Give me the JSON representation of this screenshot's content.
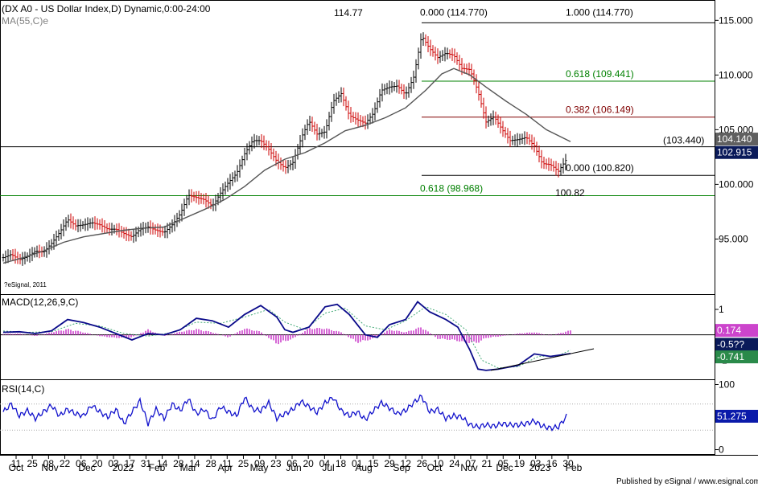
{
  "chart_data": {
    "type": "line",
    "title": "(DX A0 - US Dollar Index,D) Dynamic,0:00-24:00",
    "ma_label": "MA(55,C)e",
    "copyright": "?eSignal, 2011",
    "footer": "Published by eSignal / www.esignal.com",
    "price_panel": {
      "y_ticks": [
        115.0,
        110.0,
        105.0,
        100.0,
        95.0
      ],
      "y_tick_labels": [
        "115.000",
        "110.000",
        "105.000",
        "100.000",
        "95.000"
      ],
      "ylim": [
        89.96,
        116.86
      ],
      "last_price": "102.915",
      "ma_value": "104.140",
      "high_label": "114.77",
      "low_label": "100.82",
      "levels": [
        {
          "value": 114.77,
          "label_left": "0.000 (114.770)",
          "label_right": "1.000 (114.770)",
          "color": "#000000"
        },
        {
          "value": 109.441,
          "label": "0.618 (109.441)",
          "color": "#008000"
        },
        {
          "value": 106.149,
          "label": "0.382 (106.149)",
          "color": "#800000"
        },
        {
          "value": 103.44,
          "label": "(103.440)",
          "color": "#000000"
        },
        {
          "value": 100.82,
          "label": "0.000 (100.820)",
          "color": "#000000"
        },
        {
          "value": 98.968,
          "label": "0.618 (98.968)",
          "color": "#008000"
        }
      ],
      "close": [
        [
          0,
          93.3
        ],
        [
          10,
          93.6
        ],
        [
          20,
          93.1
        ],
        [
          30,
          93.4
        ],
        [
          40,
          93.9
        ],
        [
          50,
          93.8
        ],
        [
          60,
          94.6
        ],
        [
          70,
          95.6
        ],
        [
          80,
          96.8
        ],
        [
          90,
          96.2
        ],
        [
          100,
          96.3
        ],
        [
          110,
          96.5
        ],
        [
          120,
          96.3
        ],
        [
          130,
          95.9
        ],
        [
          140,
          95.9
        ],
        [
          150,
          95.5
        ],
        [
          160,
          95.2
        ],
        [
          170,
          95.9
        ],
        [
          180,
          96.1
        ],
        [
          190,
          95.8
        ],
        [
          200,
          95.6
        ],
        [
          210,
          96.3
        ],
        [
          220,
          97.3
        ],
        [
          230,
          99.0
        ],
        [
          240,
          98.8
        ],
        [
          250,
          98.6
        ],
        [
          260,
          98.0
        ],
        [
          270,
          99.2
        ],
        [
          280,
          100.2
        ],
        [
          290,
          101.0
        ],
        [
          300,
          102.8
        ],
        [
          310,
          104.0
        ],
        [
          320,
          104.0
        ],
        [
          330,
          103.2
        ],
        [
          340,
          102.1
        ],
        [
          350,
          101.5
        ],
        [
          360,
          102.0
        ],
        [
          370,
          104.2
        ],
        [
          380,
          105.8
        ],
        [
          390,
          104.6
        ],
        [
          400,
          104.8
        ],
        [
          410,
          107.6
        ],
        [
          420,
          108.3
        ],
        [
          430,
          106.3
        ],
        [
          440,
          105.9
        ],
        [
          450,
          105.6
        ],
        [
          460,
          106.5
        ],
        [
          470,
          108.6
        ],
        [
          480,
          108.9
        ],
        [
          490,
          109.0
        ],
        [
          500,
          108.2
        ],
        [
          510,
          109.8
        ],
        [
          520,
          113.6
        ],
        [
          530,
          112.4
        ],
        [
          540,
          111.6
        ],
        [
          550,
          112.0
        ],
        [
          560,
          111.8
        ],
        [
          570,
          110.6
        ],
        [
          580,
          110.5
        ],
        [
          590,
          108.5
        ],
        [
          600,
          105.7
        ],
        [
          610,
          106.2
        ],
        [
          620,
          105.0
        ],
        [
          630,
          104.0
        ],
        [
          640,
          104.1
        ],
        [
          650,
          104.3
        ],
        [
          660,
          103.5
        ],
        [
          670,
          101.9
        ],
        [
          680,
          101.8
        ],
        [
          690,
          101.2
        ],
        [
          700,
          102.3
        ]
      ],
      "ma": [
        [
          0,
          92.8
        ],
        [
          25,
          93.3
        ],
        [
          50,
          93.9
        ],
        [
          75,
          94.7
        ],
        [
          100,
          95.2
        ],
        [
          125,
          95.5
        ],
        [
          150,
          95.8
        ],
        [
          175,
          96.0
        ],
        [
          200,
          96.1
        ],
        [
          225,
          96.9
        ],
        [
          250,
          97.7
        ],
        [
          275,
          98.6
        ],
        [
          300,
          99.8
        ],
        [
          325,
          101.3
        ],
        [
          350,
          102.3
        ],
        [
          375,
          102.9
        ],
        [
          400,
          103.8
        ],
        [
          425,
          104.9
        ],
        [
          450,
          105.4
        ],
        [
          475,
          106.1
        ],
        [
          500,
          107.0
        ],
        [
          525,
          108.6
        ],
        [
          545,
          110.1
        ],
        [
          560,
          110.6
        ],
        [
          580,
          110.0
        ],
        [
          600,
          108.9
        ],
        [
          625,
          107.6
        ],
        [
          650,
          106.4
        ],
        [
          675,
          105.0
        ],
        [
          705,
          103.9
        ]
      ]
    },
    "macd_panel": {
      "label": "MACD(12,26,9,C)",
      "y_ticks": [
        1,
        0,
        -1
      ],
      "y_tick_labels": [
        "1",
        "",
        "-1"
      ],
      "ylim": [
        -1.75,
        1.6
      ],
      "hist_value": "0.174",
      "macd_value": "-0.741",
      "signal_value": "-0.5??",
      "macd": [
        [
          0,
          0.1
        ],
        [
          20,
          0.12
        ],
        [
          40,
          0.05
        ],
        [
          60,
          0.16
        ],
        [
          80,
          0.6
        ],
        [
          100,
          0.48
        ],
        [
          120,
          0.3
        ],
        [
          140,
          0.05
        ],
        [
          160,
          -0.2
        ],
        [
          180,
          0.05
        ],
        [
          200,
          0.0
        ],
        [
          220,
          0.2
        ],
        [
          240,
          0.65
        ],
        [
          260,
          0.55
        ],
        [
          280,
          0.3
        ],
        [
          300,
          0.8
        ],
        [
          320,
          1.15
        ],
        [
          340,
          0.7
        ],
        [
          350,
          0.2
        ],
        [
          360,
          0.1
        ],
        [
          380,
          0.3
        ],
        [
          400,
          1.1
        ],
        [
          415,
          1.2
        ],
        [
          430,
          0.8
        ],
        [
          450,
          0.0
        ],
        [
          465,
          -0.1
        ],
        [
          480,
          0.4
        ],
        [
          500,
          0.6
        ],
        [
          515,
          1.3
        ],
        [
          530,
          0.9
        ],
        [
          550,
          0.6
        ],
        [
          565,
          0.3
        ],
        [
          580,
          -0.6
        ],
        [
          590,
          -1.35
        ],
        [
          600,
          -1.4
        ],
        [
          615,
          -1.35
        ],
        [
          640,
          -1.2
        ],
        [
          660,
          -0.75
        ],
        [
          680,
          -0.85
        ],
        [
          705,
          -0.74
        ]
      ],
      "signal": [
        [
          0,
          0.15
        ],
        [
          30,
          0.1
        ],
        [
          60,
          0.12
        ],
        [
          90,
          0.45
        ],
        [
          120,
          0.35
        ],
        [
          150,
          0.05
        ],
        [
          180,
          -0.05
        ],
        [
          210,
          0.08
        ],
        [
          240,
          0.5
        ],
        [
          270,
          0.45
        ],
        [
          300,
          0.7
        ],
        [
          330,
          1.0
        ],
        [
          350,
          0.5
        ],
        [
          375,
          0.2
        ],
        [
          400,
          0.85
        ],
        [
          425,
          1.05
        ],
        [
          450,
          0.35
        ],
        [
          475,
          0.2
        ],
        [
          500,
          0.55
        ],
        [
          525,
          1.1
        ],
        [
          550,
          0.8
        ],
        [
          575,
          0.2
        ],
        [
          595,
          -1.0
        ],
        [
          615,
          -1.3
        ],
        [
          640,
          -1.25
        ],
        [
          665,
          -0.85
        ],
        [
          690,
          -0.82
        ],
        [
          705,
          -0.6
        ]
      ],
      "histogram": [
        [
          0,
          0.03
        ],
        [
          20,
          0.05
        ],
        [
          40,
          -0.05
        ],
        [
          60,
          0.1
        ],
        [
          80,
          0.22
        ],
        [
          100,
          0.1
        ],
        [
          120,
          -0.05
        ],
        [
          140,
          -0.12
        ],
        [
          160,
          -0.1
        ],
        [
          180,
          0.2
        ],
        [
          200,
          -0.05
        ],
        [
          220,
          0.12
        ],
        [
          240,
          0.22
        ],
        [
          260,
          0.1
        ],
        [
          280,
          -0.1
        ],
        [
          300,
          0.25
        ],
        [
          320,
          0.12
        ],
        [
          340,
          -0.35
        ],
        [
          360,
          -0.15
        ],
        [
          380,
          0.25
        ],
        [
          400,
          0.25
        ],
        [
          420,
          0.1
        ],
        [
          440,
          -0.3
        ],
        [
          460,
          -0.15
        ],
        [
          480,
          0.2
        ],
        [
          500,
          0.1
        ],
        [
          520,
          0.3
        ],
        [
          540,
          -0.15
        ],
        [
          560,
          -0.2
        ],
        [
          575,
          -0.3
        ],
        [
          590,
          -0.3
        ],
        [
          600,
          -0.12
        ],
        [
          620,
          -0.05
        ],
        [
          640,
          0.05
        ],
        [
          660,
          0.1
        ],
        [
          680,
          -0.03
        ],
        [
          705,
          0.17
        ]
      ]
    },
    "rsi_panel": {
      "label": "RSI(14,C)",
      "y_ticks": [
        100,
        50,
        0
      ],
      "y_tick_labels": [
        "100",
        "50",
        "0"
      ],
      "ylim": [
        -8,
        108
      ],
      "overbought": 70,
      "oversold": 30,
      "value": "51.275",
      "rsi": [
        [
          0,
          58
        ],
        [
          10,
          70
        ],
        [
          20,
          52
        ],
        [
          30,
          60
        ],
        [
          40,
          48
        ],
        [
          50,
          58
        ],
        [
          60,
          68
        ],
        [
          70,
          52
        ],
        [
          80,
          62
        ],
        [
          90,
          55
        ],
        [
          100,
          52
        ],
        [
          110,
          68
        ],
        [
          120,
          58
        ],
        [
          130,
          50
        ],
        [
          140,
          62
        ],
        [
          150,
          40
        ],
        [
          160,
          58
        ],
        [
          170,
          75
        ],
        [
          180,
          40
        ],
        [
          190,
          62
        ],
        [
          200,
          48
        ],
        [
          210,
          70
        ],
        [
          220,
          60
        ],
        [
          230,
          78
        ],
        [
          240,
          55
        ],
        [
          250,
          62
        ],
        [
          260,
          45
        ],
        [
          270,
          66
        ],
        [
          280,
          58
        ],
        [
          290,
          52
        ],
        [
          300,
          80
        ],
        [
          310,
          62
        ],
        [
          320,
          60
        ],
        [
          330,
          72
        ],
        [
          340,
          48
        ],
        [
          350,
          55
        ],
        [
          360,
          62
        ],
        [
          370,
          74
        ],
        [
          380,
          66
        ],
        [
          390,
          57
        ],
        [
          400,
          72
        ],
        [
          410,
          80
        ],
        [
          420,
          60
        ],
        [
          430,
          52
        ],
        [
          440,
          58
        ],
        [
          450,
          46
        ],
        [
          460,
          60
        ],
        [
          470,
          72
        ],
        [
          480,
          64
        ],
        [
          490,
          55
        ],
        [
          500,
          60
        ],
        [
          510,
          72
        ],
        [
          520,
          82
        ],
        [
          530,
          58
        ],
        [
          540,
          62
        ],
        [
          550,
          48
        ],
        [
          560,
          52
        ],
        [
          570,
          50
        ],
        [
          580,
          38
        ],
        [
          590,
          35
        ],
        [
          600,
          38
        ],
        [
          610,
          36
        ],
        [
          620,
          40
        ],
        [
          630,
          38
        ],
        [
          640,
          38
        ],
        [
          650,
          40
        ],
        [
          660,
          44
        ],
        [
          670,
          36
        ],
        [
          680,
          33
        ],
        [
          690,
          35
        ],
        [
          700,
          51
        ]
      ]
    },
    "trendlines": [
      {
        "panel": "price",
        "from": [
          524,
          114.77
        ],
        "to": [
          888,
          114.77
        ]
      },
      {
        "panel": "macd",
        "from": [
          610,
          -1.4
        ],
        "to": [
          738,
          -0.55
        ]
      }
    ],
    "x_tick_days": [
      "11",
      "25",
      "08",
      "22",
      "06",
      "20",
      "03",
      "17",
      "31",
      "14",
      "28",
      "14",
      "28",
      "11",
      "25",
      "09",
      "23",
      "06",
      "20",
      "04",
      "18",
      "01",
      "15",
      "29",
      "12",
      "26",
      "10",
      "24",
      "07",
      "21",
      "05",
      "19",
      "03",
      "16",
      "30"
    ],
    "x_tick_months": [
      "Oct",
      "Nov",
      "Dec",
      "2022",
      "Feb",
      "Mar",
      "Apr",
      "May",
      "Jun",
      "Jul",
      "Aug",
      "Sep",
      "Oct",
      "Nov",
      "Dec",
      "2023",
      "Feb"
    ]
  }
}
